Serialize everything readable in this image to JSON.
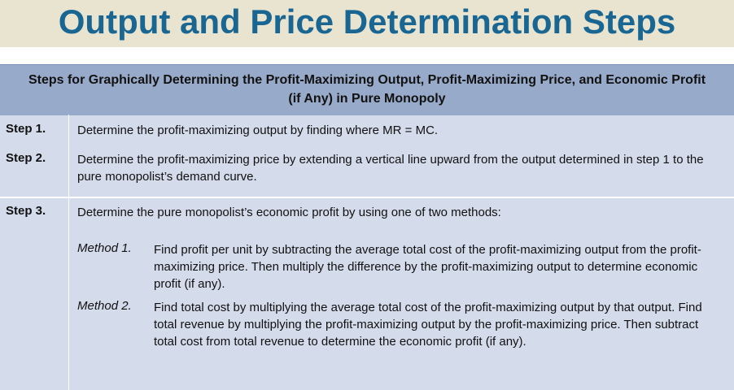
{
  "title": "Output and Price Determination Steps",
  "table": {
    "header": "Steps for Graphically Determining the Profit-Maximizing Output, Profit-Maximizing Price, and Economic Profit (if Any) in Pure Monopoly",
    "steps": [
      {
        "label": "Step 1.",
        "text": "Determine the profit-maximizing output by finding where MR = MC."
      },
      {
        "label": "Step 2.",
        "text": "Determine the profit-maximizing price by extending a vertical line upward from the output determined in step 1 to the pure monopolist’s demand curve."
      },
      {
        "label": "Step 3.",
        "text": "Determine the pure monopolist’s economic profit by using one of two methods:",
        "methods": [
          {
            "label": "Method 1.",
            "text": "Find profit per unit by subtracting the average total cost of the profit-maximizing output from the profit-maximizing price. Then multiply the difference by the profit-maximizing output to determine economic profit (if any)."
          },
          {
            "label": "Method 2.",
            "text": "Find total cost by multiplying the average total cost of the profit-maximizing output by that output. Find total revenue by multiplying the profit-maximizing output by the profit-maximizing price. Then subtract total cost from total revenue to determine the economic profit (if any)."
          }
        ]
      }
    ]
  }
}
